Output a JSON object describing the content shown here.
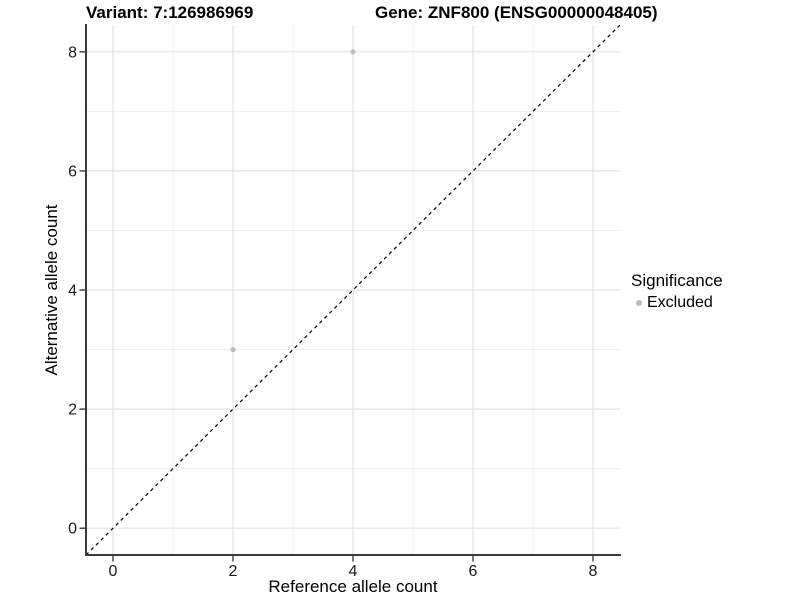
{
  "titles": {
    "variant": "Variant: 7:126986969",
    "gene": "Gene: ZNF800 (ENSG00000048405)"
  },
  "chart_data": {
    "type": "scatter",
    "xlabel": "Reference allele count",
    "ylabel": "Alternative allele count",
    "xlim": [
      -0.45,
      8.45
    ],
    "ylim": [
      -0.45,
      8.45
    ],
    "x_major_ticks": [
      0,
      2,
      4,
      6,
      8
    ],
    "y_major_ticks": [
      0,
      2,
      4,
      6,
      8
    ],
    "x_minor_gridlines": [
      1,
      3,
      5,
      7
    ],
    "y_minor_gridlines": [
      1,
      3,
      5,
      7
    ],
    "grid": "major-and-minor",
    "legend_position": "right",
    "reference_line": {
      "style": "dashed",
      "slope": 1,
      "intercept": 0,
      "color": "#000000"
    },
    "series": [
      {
        "name": "Excluded",
        "color": "#bdbdbd",
        "points": [
          {
            "x": 4,
            "y": 8
          },
          {
            "x": 2,
            "y": 3
          }
        ]
      }
    ]
  },
  "legend": {
    "title": "Significance",
    "items": [
      {
        "label": "Excluded",
        "color": "#bdbdbd"
      }
    ]
  },
  "colors": {
    "excluded_point": "#bdbdbd",
    "axis_line": "#3a3a3a",
    "grid_major": "#e2e2e2",
    "grid_minor": "#eeeeee"
  }
}
